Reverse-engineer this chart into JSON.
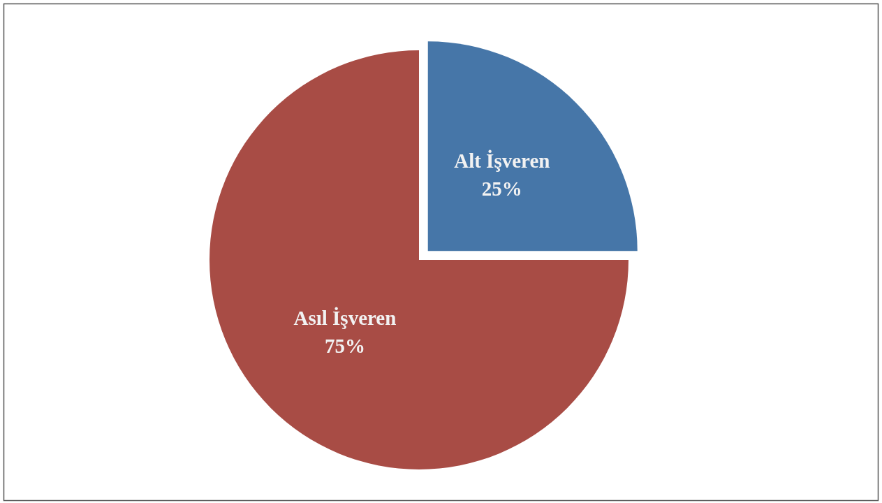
{
  "chart_data": {
    "type": "pie",
    "categories": [
      "Alt İşveren",
      "Asıl İşveren"
    ],
    "values": [
      25,
      75
    ],
    "colors": [
      "#4676a8",
      "#a84c45"
    ],
    "value_labels": [
      "25%",
      "75%"
    ]
  }
}
